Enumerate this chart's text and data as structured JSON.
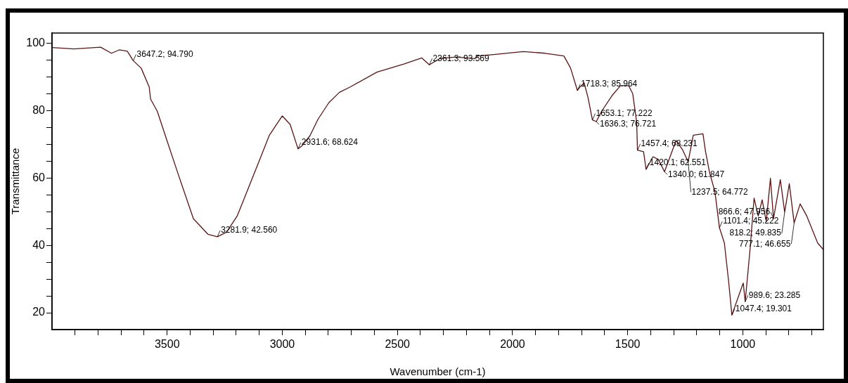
{
  "chart_data": {
    "type": "line",
    "xlabel": "Wavenumber (cm-1)",
    "ylabel": "Transmittance",
    "x": [
      4000,
      3905,
      3789,
      3742,
      3708,
      3673,
      3647.2,
      3613,
      3578,
      3572,
      3543,
      3497,
      3450,
      3386,
      3323,
      3281.9,
      3242,
      3196,
      3149,
      3103,
      3056,
      3000,
      2966,
      2931.6,
      2915,
      2880,
      2845,
      2798,
      2752,
      2705,
      2589,
      2472,
      2394,
      2361.3,
      2317,
      2246,
      2164,
      2152,
      2082,
      1953,
      1859,
      1777,
      1748,
      1718.3,
      1707,
      1689,
      1672,
      1653.1,
      1636.3,
      1613,
      1566,
      1531,
      1496,
      1478,
      1461,
      1457.4,
      1431,
      1420.1,
      1390,
      1367,
      1340.0,
      1320,
      1290,
      1261,
      1237.5,
      1215,
      1173,
      1162,
      1144,
      1121,
      1101.4,
      1080,
      1062,
      1047.4,
      1015,
      998,
      989.6,
      968,
      951,
      933,
      916,
      898,
      880,
      866.6,
      837,
      818.2,
      798,
      777.1,
      751,
      722,
      675,
      650
    ],
    "series": [
      {
        "color": "#5a1414",
        "values": [
          98.7,
          98.3,
          98.8,
          97.0,
          98.0,
          97.6,
          94.79,
          92.6,
          87.0,
          83.4,
          79.8,
          70.3,
          60.7,
          47.9,
          43.3,
          42.56,
          43.9,
          48.7,
          56.7,
          64.6,
          72.7,
          78.4,
          75.9,
          68.624,
          69.5,
          72.5,
          77.4,
          82.3,
          85.4,
          87.0,
          91.4,
          93.8,
          95.6,
          93.569,
          95.4,
          95.9,
          95.4,
          96.2,
          96.6,
          97.5,
          97.0,
          96.2,
          92.6,
          85.964,
          87.0,
          88.2,
          83.8,
          77.222,
          76.721,
          79.8,
          84.6,
          87.4,
          87.4,
          85.0,
          76.6,
          68.231,
          67.8,
          62.551,
          66.3,
          65.5,
          61.847,
          65.5,
          71.1,
          68.3,
          64.772,
          72.7,
          73.1,
          67.9,
          61.5,
          55.9,
          45.222,
          40.7,
          29.6,
          19.301,
          25.6,
          28.8,
          23.285,
          39.2,
          54.0,
          48.7,
          53.5,
          47.1,
          59.9,
          47.956,
          59.5,
          49.835,
          58.3,
          46.655,
          52.3,
          48.7,
          40.7,
          38.7
        ]
      }
    ],
    "xlim": [
      4000,
      650
    ],
    "xticks": [
      {
        "value": 3900,
        "label": null
      },
      {
        "value": 3800,
        "label": null
      },
      {
        "value": 3700,
        "label": null
      },
      {
        "value": 3600,
        "label": null
      },
      3500,
      {
        "value": 3400,
        "label": null
      },
      {
        "value": 3300,
        "label": null
      },
      {
        "value": 3200,
        "label": null
      },
      {
        "value": 3100,
        "label": null
      },
      3000,
      {
        "value": 2900,
        "label": null
      },
      {
        "value": 2800,
        "label": null
      },
      {
        "value": 2700,
        "label": null
      },
      {
        "value": 2600,
        "label": null
      },
      2500,
      {
        "value": 2400,
        "label": null
      },
      {
        "value": 2300,
        "label": null
      },
      {
        "value": 2200,
        "label": null
      },
      {
        "value": 2100,
        "label": null
      },
      2000,
      {
        "value": 1900,
        "label": null
      },
      {
        "value": 1800,
        "label": null
      },
      {
        "value": 1700,
        "label": null
      },
      {
        "value": 1600,
        "label": null
      },
      1500,
      {
        "value": 1400,
        "label": null
      },
      {
        "value": 1300,
        "label": null
      },
      {
        "value": 1200,
        "label": null
      },
      {
        "value": 1100,
        "label": null
      },
      1000,
      {
        "value": 900,
        "label": null
      },
      {
        "value": 800,
        "label": null
      },
      {
        "value": 700,
        "label": null
      }
    ],
    "ylim": [
      15,
      103
    ],
    "yticks": [
      20,
      {
        "value": 25,
        "label": null
      },
      {
        "value": 30,
        "label": null
      },
      {
        "value": 35,
        "label": null
      },
      40,
      {
        "value": 45,
        "label": null
      },
      {
        "value": 50,
        "label": null
      },
      {
        "value": 55,
        "label": null
      },
      60,
      {
        "value": 65,
        "label": null
      },
      {
        "value": 70,
        "label": null
      },
      {
        "value": 75,
        "label": null
      },
      80,
      {
        "value": 85,
        "label": null
      },
      {
        "value": 90,
        "label": null
      },
      {
        "value": 95,
        "label": null
      },
      100
    ],
    "grid": false,
    "annotations": [
      {
        "text": "3647.2; 94.790",
        "x": 3647.2,
        "y": 94.79
      },
      {
        "text": "3281.9; 42.560",
        "x": 3281.9,
        "y": 42.56
      },
      {
        "text": "2931.6; 68.624",
        "x": 2931.6,
        "y": 68.624
      },
      {
        "text": "2361.3; 93.569",
        "x": 2361.3,
        "y": 93.569
      },
      {
        "text": "1718.3; 85.964",
        "x": 1718.3,
        "y": 85.964
      },
      {
        "text": "1653.1; 77.222",
        "x": 1653.1,
        "y": 77.222
      },
      {
        "text": "1636.3; 76.721",
        "x": 1636.3,
        "y": 76.721
      },
      {
        "text": "1457.4; 68.231",
        "x": 1457.4,
        "y": 68.231
      },
      {
        "text": "1420.1; 62.551",
        "x": 1420.1,
        "y": 62.551
      },
      {
        "text": "1340.0; 61.847",
        "x": 1340.0,
        "y": 61.847
      },
      {
        "text": "1237.5; 64.772",
        "x": 1237.5,
        "y": 64.772
      },
      {
        "text": "1101.4; 45.222",
        "x": 1101.4,
        "y": 45.222
      },
      {
        "text": "1047.4; 19.301",
        "x": 1047.4,
        "y": 19.301
      },
      {
        "text": "989.6; 23.285",
        "x": 989.6,
        "y": 23.285
      },
      {
        "text": "866.6; 47.956",
        "x": 866.6,
        "y": 47.956
      },
      {
        "text": "818.2; 49.835",
        "x": 818.2,
        "y": 49.835
      },
      {
        "text": "777.1; 46.655",
        "x": 777.1,
        "y": 46.655
      }
    ]
  }
}
